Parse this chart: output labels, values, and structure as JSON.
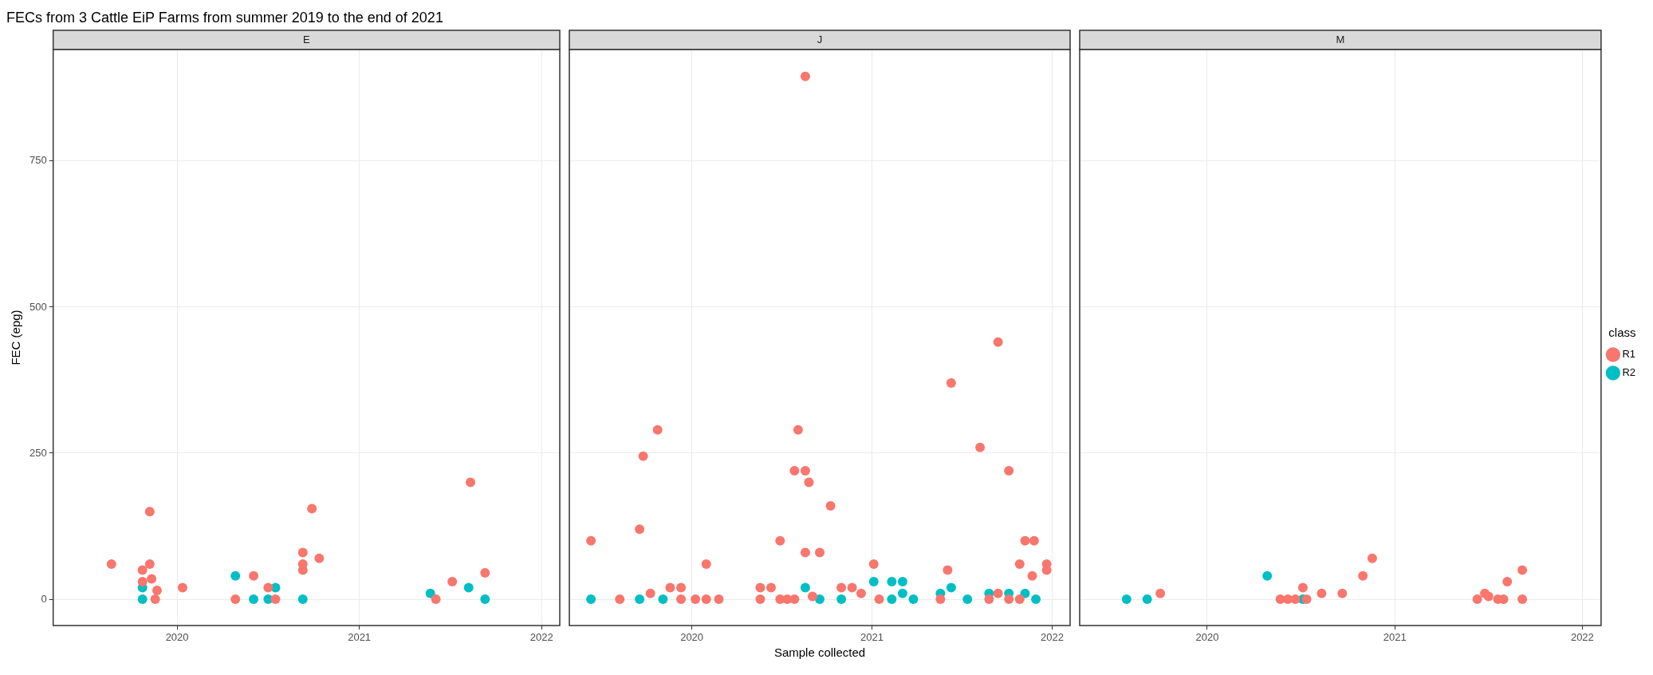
{
  "chart_data": [
    {
      "type": "scatter",
      "title": "FECs from 3 Cattle EiP Farms from summer 2019 to the end of 2021",
      "subtitle": "E",
      "ylabel": "FEC (epg)",
      "xlim": [
        2019.32,
        2022.1
      ],
      "xticks": [
        2020,
        2021,
        2022
      ],
      "ylim": [
        -45,
        941
      ],
      "yticks": [
        0,
        250,
        500,
        750
      ],
      "grid": true,
      "marker": "circle",
      "legend": false,
      "series": [
        {
          "color": "#f8766d",
          "x": [
            2019.64,
            2019.81,
            2019.85,
            2019.85,
            2019.81,
            2019.86,
            2019.89,
            2019.88,
            2020.03,
            2020.32,
            2020.42,
            2020.5,
            2020.54,
            2020.69,
            2020.69,
            2020.69,
            2020.74,
            2020.78,
            2021.42,
            2021.51,
            2021.61,
            2021.69
          ],
          "values": [
            60,
            50,
            60,
            150,
            30,
            35,
            15,
            0,
            20,
            0,
            40,
            20,
            0,
            80,
            60,
            50,
            155,
            70,
            0,
            30,
            200,
            45
          ]
        },
        {
          "color": "#00bfc4",
          "x": [
            2019.81,
            2019.81,
            2020.32,
            2020.42,
            2020.5,
            2020.54,
            2020.69,
            2021.39,
            2021.6,
            2021.69
          ],
          "values": [
            20,
            0,
            40,
            0,
            0,
            20,
            0,
            10,
            20,
            0
          ]
        }
      ]
    },
    {
      "type": "scatter",
      "subtitle": "J",
      "xlabel": "Sample collected",
      "xlim": [
        2019.32,
        2022.1
      ],
      "xticks": [
        2020,
        2021,
        2022
      ],
      "ylim": [
        -45,
        941
      ],
      "yticks": [
        0,
        250,
        500,
        750
      ],
      "grid": true,
      "marker": "circle",
      "legend": false,
      "tick_labels": "x",
      "series": [
        {
          "color": "#f8766d",
          "x": [
            2019.44,
            2019.6,
            2019.73,
            2019.71,
            2019.81,
            2019.77,
            2019.88,
            2019.94,
            2019.94,
            2020.02,
            2020.08,
            2020.08,
            2020.15,
            2020.38,
            2020.44,
            2020.38,
            2020.49,
            2020.49,
            2020.53,
            2020.57,
            2020.59,
            2020.57,
            2020.63,
            2020.65,
            2020.63,
            2020.67,
            2020.71,
            2020.77,
            2020.83,
            2020.89,
            2020.94,
            2021.01,
            2021.04,
            2020.63,
            2021.7,
            2021.44,
            2021.38,
            2021.42,
            2021.6,
            2021.76,
            2021.65,
            2021.7,
            2021.76,
            2021.82,
            2021.82,
            2021.85,
            2021.9,
            2021.89,
            2021.97,
            2021.97
          ],
          "values": [
            100,
            0,
            245,
            120,
            290,
            10,
            20,
            20,
            0,
            0,
            0,
            60,
            0,
            20,
            20,
            0,
            100,
            0,
            0,
            0,
            290,
            220,
            220,
            200,
            80,
            5,
            80,
            160,
            20,
            20,
            10,
            60,
            0,
            895,
            440,
            370,
            0,
            50,
            260,
            220,
            0,
            10,
            0,
            60,
            0,
            100,
            100,
            40,
            60,
            50
          ]
        },
        {
          "color": "#00bfc4",
          "x": [
            2019.44,
            2019.71,
            2019.84,
            2020.63,
            2020.71,
            2020.83,
            2021.01,
            2021.11,
            2021.17,
            2021.11,
            2021.17,
            2021.23,
            2021.38,
            2021.44,
            2021.53,
            2021.65,
            2021.76,
            2021.85,
            2021.91
          ],
          "values": [
            0,
            0,
            0,
            20,
            0,
            0,
            30,
            30,
            30,
            0,
            10,
            0,
            10,
            20,
            0,
            10,
            10,
            10,
            0
          ]
        }
      ]
    },
    {
      "type": "scatter",
      "subtitle": "M",
      "xlim": [
        2019.32,
        2022.1
      ],
      "xticks": [
        2020,
        2021,
        2022
      ],
      "ylim": [
        -45,
        941
      ],
      "yticks": [
        0,
        250,
        500,
        750
      ],
      "grid": true,
      "marker": "circle",
      "legend": "right",
      "legend_title": "class",
      "tick_labels": "x",
      "series": [
        {
          "name": "R1",
          "color": "#f8766d",
          "x": [
            2019.75,
            2020.39,
            2020.43,
            2020.47,
            2020.53,
            2020.51,
            2020.61,
            2020.72,
            2020.83,
            2020.88,
            2021.44,
            2021.48,
            2021.5,
            2021.55,
            2021.58,
            2021.6,
            2021.68,
            2021.68
          ],
          "values": [
            10,
            0,
            0,
            0,
            0,
            20,
            10,
            10,
            40,
            70,
            0,
            10,
            5,
            0,
            0,
            30,
            50,
            0
          ]
        },
        {
          "name": "R2",
          "color": "#00bfc4",
          "x": [
            2019.57,
            2019.68,
            2020.32,
            2020.51
          ],
          "values": [
            0,
            0,
            40,
            0
          ]
        }
      ]
    }
  ]
}
